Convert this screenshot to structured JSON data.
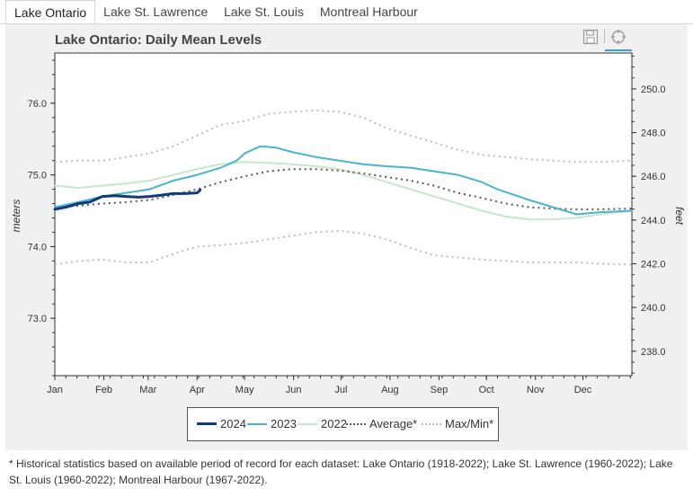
{
  "tabs": [
    {
      "label": "Lake Ontario"
    },
    {
      "label": "Lake St. Lawrence"
    },
    {
      "label": "Lake St. Louis"
    },
    {
      "label": "Montreal Harbour"
    }
  ],
  "toolbar": {
    "save_icon": "save-icon",
    "crosshair_icon": "crosshair-icon"
  },
  "footnote": "* Historical statistics based on available period of record for each dataset: Lake Ontario (1918-2022); Lake St. Lawrence (1960-2022); Lake St. Louis (1960-2022); Montreal Harbour (1967-2022).",
  "chart_data": {
    "type": "line",
    "title": "Lake Ontario: Daily Mean Levels",
    "ylabel": "meters",
    "y2label": "feet",
    "xlabel": "",
    "ylim": [
      72.2,
      76.7
    ],
    "y2lim": [
      236.88,
      251.64
    ],
    "yticks": [
      "73.0",
      "74.0",
      "75.0",
      "76.0"
    ],
    "y2ticks": [
      "238.0",
      "240.0",
      "242.0",
      "244.0",
      "246.0",
      "248.0",
      "250.0"
    ],
    "x_ticks": [
      "Jan",
      "Feb",
      "Mar",
      "Apr",
      "May",
      "Jun",
      "Jul",
      "Aug",
      "Sep",
      "Oct",
      "Nov",
      "Dec"
    ],
    "x_range_days": [
      0,
      365
    ],
    "series": [
      {
        "name": "2024",
        "color": "#123a78",
        "style": "solid",
        "width": 3,
        "x": [
          0,
          7,
          15,
          22,
          30,
          38,
          45,
          53,
          60,
          68,
          75,
          82,
          90,
          92
        ],
        "y": [
          74.52,
          74.55,
          74.6,
          74.62,
          74.7,
          74.71,
          74.7,
          74.69,
          74.7,
          74.72,
          74.74,
          74.74,
          74.75,
          74.79
        ]
      },
      {
        "name": "2023",
        "color": "#4ab3cf",
        "style": "solid",
        "width": 2,
        "x": [
          0,
          15,
          30,
          45,
          60,
          75,
          90,
          105,
          115,
          120,
          130,
          140,
          150,
          165,
          180,
          195,
          210,
          225,
          240,
          255,
          270,
          280,
          300,
          315,
          330,
          345,
          365
        ],
        "y": [
          74.55,
          74.62,
          74.7,
          74.75,
          74.8,
          74.92,
          75.0,
          75.1,
          75.2,
          75.3,
          75.4,
          75.38,
          75.32,
          75.25,
          75.2,
          75.15,
          75.12,
          75.1,
          75.05,
          75.0,
          74.9,
          74.8,
          74.65,
          74.55,
          74.45,
          74.48,
          74.5
        ]
      },
      {
        "name": "2022",
        "color": "#c8e6c9",
        "style": "solid",
        "width": 2,
        "x": [
          0,
          15,
          30,
          45,
          60,
          75,
          90,
          105,
          120,
          135,
          150,
          165,
          180,
          195,
          210,
          225,
          240,
          255,
          270,
          285,
          300,
          315,
          330,
          345,
          365
        ],
        "y": [
          74.85,
          74.82,
          74.85,
          74.88,
          74.92,
          75.0,
          75.08,
          75.15,
          75.18,
          75.17,
          75.15,
          75.12,
          75.08,
          75.0,
          74.9,
          74.8,
          74.7,
          74.6,
          74.5,
          74.42,
          74.38,
          74.38,
          74.4,
          74.45,
          74.5
        ]
      },
      {
        "name": "Average*",
        "color": "#555555",
        "style": "dotted",
        "width": 2,
        "x": [
          0,
          15,
          30,
          45,
          60,
          75,
          90,
          105,
          120,
          135,
          150,
          165,
          180,
          195,
          210,
          225,
          240,
          255,
          270,
          285,
          300,
          315,
          330,
          345,
          365
        ],
        "y": [
          74.55,
          74.57,
          74.6,
          74.62,
          74.65,
          74.72,
          74.8,
          74.9,
          74.98,
          75.05,
          75.08,
          75.08,
          75.06,
          75.02,
          74.97,
          74.92,
          74.85,
          74.75,
          74.68,
          74.6,
          74.55,
          74.53,
          74.52,
          74.52,
          74.53
        ]
      },
      {
        "name": "Max/Min*",
        "color": "#bbbbbb",
        "style": "dotted",
        "width": 2,
        "x": [
          0,
          15,
          30,
          45,
          60,
          75,
          90,
          105,
          120,
          135,
          150,
          165,
          180,
          195,
          210,
          225,
          240,
          255,
          270,
          285,
          300,
          315,
          330,
          345,
          365
        ],
        "y": [
          75.18,
          75.2,
          75.2,
          75.25,
          75.3,
          75.4,
          75.55,
          75.7,
          75.75,
          75.85,
          75.88,
          75.9,
          75.88,
          75.8,
          75.65,
          75.55,
          75.45,
          75.35,
          75.28,
          75.25,
          75.22,
          75.2,
          75.18,
          75.18,
          75.2
        ]
      },
      {
        "name": "Max/Min* (min)",
        "color": "#bbbbbb",
        "style": "dotted",
        "width": 2,
        "x": [
          0,
          15,
          30,
          45,
          60,
          75,
          90,
          105,
          120,
          135,
          150,
          165,
          180,
          195,
          210,
          225,
          240,
          255,
          270,
          285,
          300,
          315,
          330,
          345,
          365
        ],
        "y": [
          73.75,
          73.8,
          73.82,
          73.78,
          73.78,
          73.9,
          74.0,
          74.02,
          74.05,
          74.1,
          74.15,
          74.2,
          74.22,
          74.18,
          74.1,
          73.98,
          73.88,
          73.85,
          73.82,
          73.8,
          73.78,
          73.78,
          73.78,
          73.76,
          73.75
        ]
      }
    ],
    "legend": [
      {
        "label": "2024",
        "color": "#123a78",
        "style": "solid"
      },
      {
        "label": "2023",
        "color": "#4ab3cf",
        "style": "solid"
      },
      {
        "label": "2022",
        "color": "#c8e6c9",
        "style": "solid"
      },
      {
        "label": "Average*",
        "color": "#555555",
        "style": "dotted"
      },
      {
        "label": "Max/Min*",
        "color": "#bbbbbb",
        "style": "dotted"
      }
    ]
  }
}
